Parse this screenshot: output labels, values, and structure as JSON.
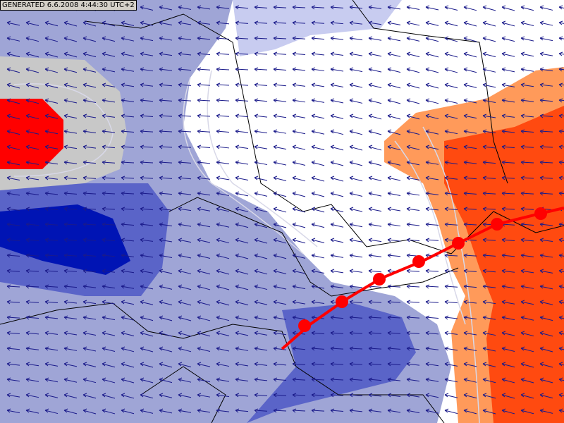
{
  "header": {
    "generated": "GENERATED 6.6.2008 4:44:30 UTC+2"
  }
}
